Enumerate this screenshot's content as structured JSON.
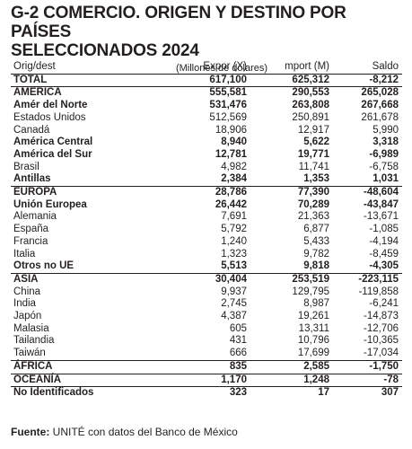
{
  "title": "G-2 COMERCIO. ORIGEN Y DESTINO POR PAÍSES\nSELECCIONADOS 2024",
  "subtitle": "(Millones de dólares)",
  "columns": [
    "Orig/dest",
    "Expor (X)",
    "mport (M)",
    "Saldo"
  ],
  "rows": [
    {
      "name": "TOTAL",
      "x": "617,100",
      "m": "625,312",
      "saldo": "-8,212",
      "bold": true,
      "sep": false
    },
    {
      "name": "AMERICA",
      "x": "555,581",
      "m": "290,553",
      "saldo": "265,028",
      "bold": true,
      "sep": true
    },
    {
      "name": "Amér del Norte",
      "x": "531,476",
      "m": "263,808",
      "saldo": "267,668",
      "bold": true,
      "sep": false
    },
    {
      "name": "Estados Unidos",
      "x": "512,569",
      "m": "250,891",
      "saldo": "261,678",
      "bold": false,
      "sep": false
    },
    {
      "name": "Canadá",
      "x": "18,906",
      "m": "12,917",
      "saldo": "5,990",
      "bold": false,
      "sep": false
    },
    {
      "name": "América Central",
      "x": "8,940",
      "m": "5,622",
      "saldo": "3,318",
      "bold": true,
      "sep": false
    },
    {
      "name": "América del Sur",
      "x": "12,781",
      "m": "19,771",
      "saldo": "-6,989",
      "bold": true,
      "sep": false
    },
    {
      "name": "Brasil",
      "x": "4,982",
      "m": "11,741",
      "saldo": "-6,758",
      "bold": false,
      "sep": false
    },
    {
      "name": "Antillas",
      "x": "2,384",
      "m": "1,353",
      "saldo": "1,031",
      "bold": true,
      "sep": false
    },
    {
      "name": "EUROPA",
      "x": "28,786",
      "m": "77,390",
      "saldo": "-48,604",
      "bold": true,
      "sep": true
    },
    {
      "name": "Unión Europea",
      "x": "26,442",
      "m": "70,289",
      "saldo": "-43,847",
      "bold": true,
      "sep": false
    },
    {
      "name": "Alemania",
      "x": "7,691",
      "m": "21,363",
      "saldo": "-13,671",
      "bold": false,
      "sep": false
    },
    {
      "name": "España",
      "x": "5,792",
      "m": "6,877",
      "saldo": "-1,085",
      "bold": false,
      "sep": false
    },
    {
      "name": "Francia",
      "x": "1,240",
      "m": "5,433",
      "saldo": "-4,194",
      "bold": false,
      "sep": false
    },
    {
      "name": "Italia",
      "x": "1,323",
      "m": "9,782",
      "saldo": "-8,459",
      "bold": false,
      "sep": false
    },
    {
      "name": "Otros no UE",
      "x": "5,513",
      "m": "9,818",
      "saldo": "-4,305",
      "bold": true,
      "sep": false
    },
    {
      "name": "ASIA",
      "x": "30,404",
      "m": "253,519",
      "saldo": "-223,115",
      "bold": true,
      "sep": true
    },
    {
      "name": "China",
      "x": "9,937",
      "m": "129,795",
      "saldo": "-119,858",
      "bold": false,
      "sep": false
    },
    {
      "name": "India",
      "x": "2,745",
      "m": "8,987",
      "saldo": "-6,241",
      "bold": false,
      "sep": false
    },
    {
      "name": "Japón",
      "x": "4,387",
      "m": "19,261",
      "saldo": "-14,873",
      "bold": false,
      "sep": false
    },
    {
      "name": "Malasia",
      "x": "605",
      "m": "13,311",
      "saldo": "-12,706",
      "bold": false,
      "sep": false
    },
    {
      "name": "Tailandia",
      "x": "431",
      "m": "10,796",
      "saldo": "-10,365",
      "bold": false,
      "sep": false
    },
    {
      "name": "Taiwán",
      "x": "666",
      "m": "17,699",
      "saldo": "-17,034",
      "bold": false,
      "sep": false
    },
    {
      "name": "ÁFRICA",
      "x": "835",
      "m": "2,585",
      "saldo": "-1,750",
      "bold": true,
      "sep": true
    },
    {
      "name": "OCEANÍA",
      "x": "1,170",
      "m": "1,248",
      "saldo": "-78",
      "bold": true,
      "sep": true
    },
    {
      "name": "No Identificados",
      "x": "323",
      "m": "17",
      "saldo": "307",
      "bold": true,
      "sep": true
    }
  ],
  "source_label": "Fuente:",
  "source_text": " UNITÉ con datos del Banco de México"
}
